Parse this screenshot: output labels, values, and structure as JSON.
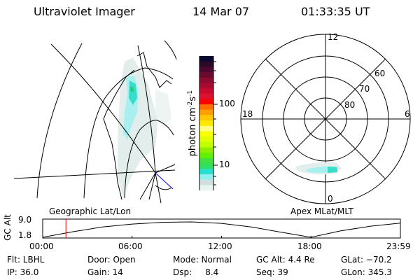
{
  "header": {
    "instrument": "Ultraviolet Imager",
    "date": "14 Mar 07",
    "time": "01:33:35 UT"
  },
  "colorbar": {
    "label_main": "photon cm",
    "label_exp1": "-2",
    "label_s": "s",
    "label_exp2": "-1",
    "scale": "log",
    "ticks": [
      "100",
      "10"
    ],
    "colors": [
      "#0a0a30",
      "#2a0a28",
      "#4a0a30",
      "#6a0a30",
      "#8a0a30",
      "#a80a30",
      "#c80a30",
      "#e01030",
      "#ff0000",
      "#ff7000",
      "#ffa000",
      "#ffc800",
      "#ffe800",
      "#ffff80",
      "#f8ff00",
      "#e0ff00",
      "#c0ff00",
      "#90f000",
      "#60f000",
      "#40e040",
      "#30e060",
      "#28e0d0",
      "#90f0f0",
      "#d0e0e0",
      "#e8f4f0"
    ]
  },
  "map_panel": {
    "label": "Geographic Lat/Lon"
  },
  "polar_panel": {
    "label": "Apex MLat/MLT",
    "mlt_labels": {
      "top": "12",
      "right": "6",
      "bottom": "0",
      "left": "18"
    },
    "lat_labels": [
      "80",
      "70",
      "60"
    ]
  },
  "chart_data": {
    "type": "line",
    "ylabel": "GC Alt",
    "yticks": [
      "9.0",
      "1.8"
    ],
    "ylim": [
      1.8,
      9.0
    ],
    "xticks": [
      "00:00",
      "06:00",
      "12:00",
      "18:00",
      "23:59"
    ],
    "x": [
      0,
      2,
      4,
      6,
      8,
      10,
      12,
      14,
      16,
      18,
      20,
      22,
      23.98
    ],
    "values": [
      1.8,
      4.4,
      6.6,
      8.0,
      8.8,
      9.0,
      8.3,
      6.6,
      4.2,
      1.8,
      4.8,
      7.0,
      8.4
    ],
    "marker_time": "01:33:35",
    "marker_color": "#ff0000"
  },
  "status": {
    "row1": [
      "Flt: LBHL",
      "Door: Open",
      "Mode: Normal",
      "GC Alt: 4.4 Re",
      "GLat: −70.2"
    ],
    "row2": [
      "IP: 36.0",
      "Gain: 14",
      "Dsp:     8.4",
      "Seq: 39",
      "GLon: 345.3"
    ]
  }
}
